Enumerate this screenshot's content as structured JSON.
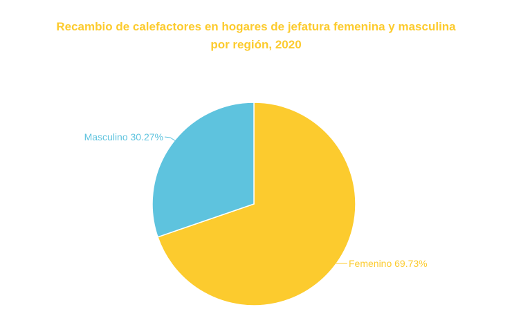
{
  "chart_data": {
    "type": "pie",
    "title_lines": [
      "Recambio de calefactores en hogares de jefatura femenina y masculina",
      "por región, 2020"
    ],
    "slices": [
      {
        "name": "Femenino",
        "value": 69.73,
        "label": "Femenino 69.73%",
        "color": "#fccb2e"
      },
      {
        "name": "Masculino",
        "value": 30.27,
        "label": "Masculino 30.27%",
        "color": "#5ec3de"
      }
    ],
    "title_color": "#fccb2e"
  }
}
